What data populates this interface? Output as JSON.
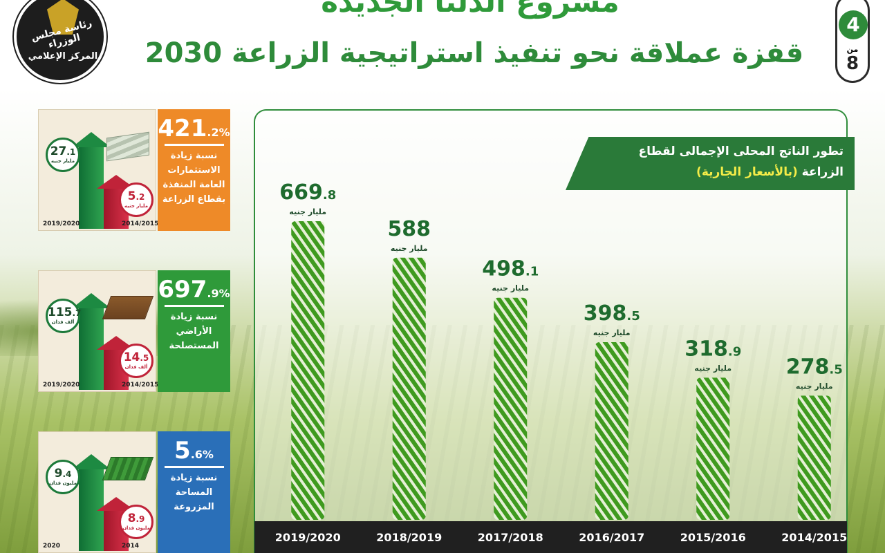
{
  "header": {
    "title": "مشروع الدلتا الجديدة",
    "subtitle": "قفزة عملاقة نحو تنفيذ استراتيجية الزراعة 2030",
    "logo_top_text": "رئاسة مجلس الوزراء",
    "logo_bottom_text": "المركز الإعلامي",
    "page_current": "4",
    "page_of": "من",
    "page_total": "8"
  },
  "cards": [
    {
      "pct_main": "421",
      "pct_dec": ".2",
      "pct_sign": "%",
      "desc": "نسبة زيادة الاستثمارات العامة المنفذة بقطاع الزراعة",
      "high_main": "27",
      "high_dec": ".1",
      "high_unit": "مليار جنيه",
      "low_main": "5",
      "low_dec": ".2",
      "low_unit": "مليار جنيه",
      "year_high": "2019/2020",
      "year_low": "2014/2015",
      "icon": "money-icon",
      "color": "#ee8a28"
    },
    {
      "pct_main": "697",
      "pct_dec": ".9",
      "pct_sign": "%",
      "desc": "نسبة زيادة الأراضي المستصلحة",
      "high_main": "115",
      "high_dec": ".7",
      "high_unit": "ألف فدان",
      "low_main": "14",
      "low_dec": ".5",
      "low_unit": "ألف فدان",
      "year_high": "2019/2020",
      "year_low": "2014/2015",
      "icon": "tractor-icon",
      "color": "#2f9a3a"
    },
    {
      "pct_main": "5",
      "pct_dec": ".6",
      "pct_sign": "%",
      "desc": "نسبة زيادة المساحة المزروعة",
      "high_main": "9",
      "high_dec": ".4",
      "high_unit": "مليون فدان",
      "low_main": "8",
      "low_dec": ".9",
      "low_unit": "مليون فدان",
      "year_high": "2020",
      "year_low": "2014",
      "icon": "field-icon",
      "color": "#2a6fb8"
    }
  ],
  "chart_data": {
    "type": "bar",
    "title_line1": "تطور الناتج المحلى الإجمالى لقطاع",
    "title_line2_prefix": "الزراعة",
    "title_line2_highlight": "(بالأسعار الجارية)",
    "unit_label": "مليار جنيه",
    "categories": [
      "2019/2020",
      "2018/2019",
      "2017/2018",
      "2016/2017",
      "2015/2016",
      "2014/2015"
    ],
    "values": [
      669.8,
      588,
      498.1,
      398.5,
      318.9,
      278.5
    ],
    "ylim": [
      0,
      700
    ],
    "bar_color": "#3f9a1f",
    "label_color": "#1e6b2e",
    "axis_band_color": "#202020"
  }
}
